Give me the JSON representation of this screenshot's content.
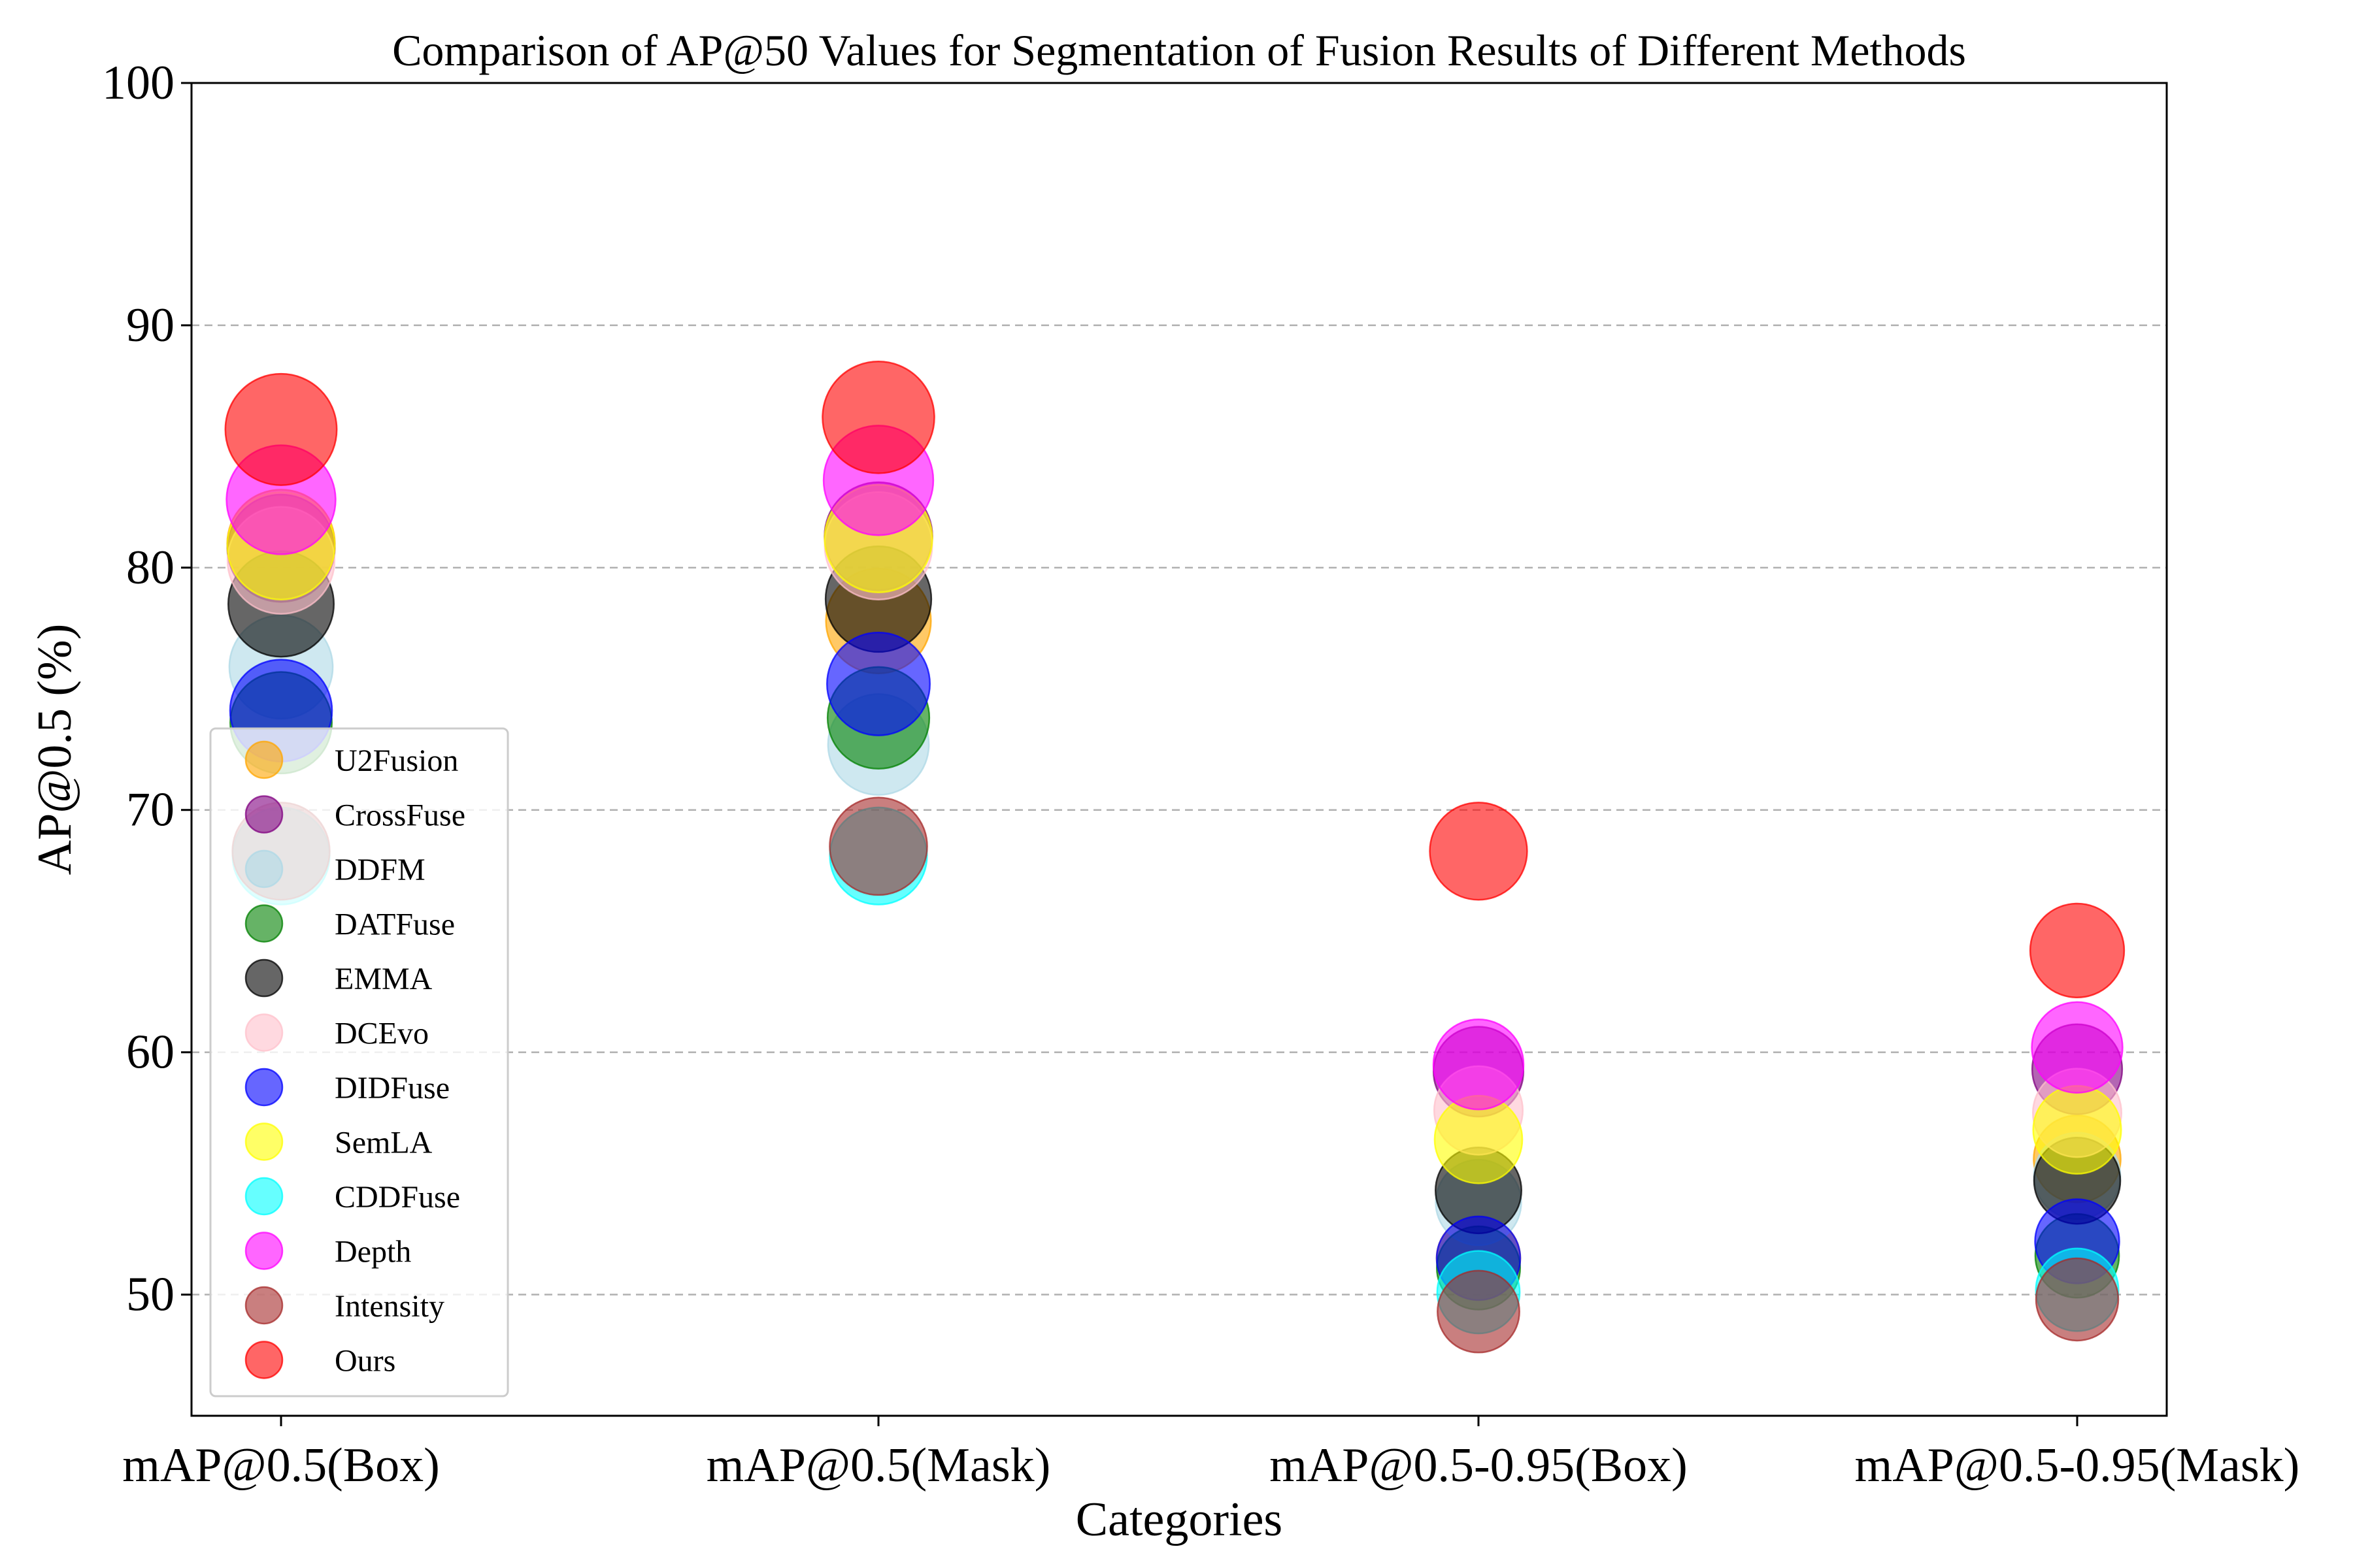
{
  "chart_data": {
    "type": "scatter",
    "title": "Comparison of AP@50 Values for Segmentation of Fusion Results of Different Methods",
    "xlabel": "Categories",
    "ylabel": "AP@0.5 (%)",
    "categories": [
      "mAP@0.5(Box)",
      "mAP@0.5(Mask)",
      "mAP@0.5-0.95(Box)",
      "mAP@0.5-0.95(Mask)"
    ],
    "ylim": [
      45,
      100
    ],
    "yticks": [
      "50",
      "60",
      "70",
      "80",
      "90",
      "100"
    ],
    "grid": "horizontal dashed",
    "legend_position": "lower-left",
    "series": [
      {
        "name": "U2Fusion",
        "color": "#ffa500",
        "values": [
          81.0,
          77.8,
          51.5,
          55.6
        ]
      },
      {
        "name": "CrossFuse",
        "color": "#800080",
        "values": [
          80.8,
          81.3,
          59.2,
          59.3
        ]
      },
      {
        "name": "DDFM",
        "color": "#add8e6",
        "values": [
          75.9,
          72.7,
          53.8,
          54.9
        ]
      },
      {
        "name": "DATFuse",
        "color": "#008000",
        "values": [
          73.6,
          73.8,
          51.1,
          51.6
        ]
      },
      {
        "name": "EMMA",
        "color": "#000000",
        "values": [
          78.5,
          78.7,
          54.3,
          54.7
        ]
      },
      {
        "name": "DCEvo",
        "color": "#ffc0cb",
        "values": [
          80.3,
          80.9,
          57.6,
          57.5
        ]
      },
      {
        "name": "DIDFuse",
        "color": "#0000ff",
        "values": [
          74.1,
          75.2,
          51.5,
          52.2
        ]
      },
      {
        "name": "SemLA",
        "color": "#ffff00",
        "values": [
          80.9,
          81.2,
          56.4,
          56.8
        ]
      },
      {
        "name": "CDDFuse",
        "color": "#00ffff",
        "values": [
          68.1,
          68.1,
          50.1,
          50.2
        ]
      },
      {
        "name": "Depth",
        "color": "#ff00ff",
        "values": [
          82.8,
          83.6,
          59.5,
          60.2
        ]
      },
      {
        "name": "Intensity",
        "color": "#a52a2a",
        "values": [
          68.3,
          68.5,
          49.3,
          49.8
        ]
      },
      {
        "name": "Ours",
        "color": "#ff0000",
        "values": [
          85.7,
          86.2,
          68.3,
          64.2
        ]
      }
    ]
  }
}
